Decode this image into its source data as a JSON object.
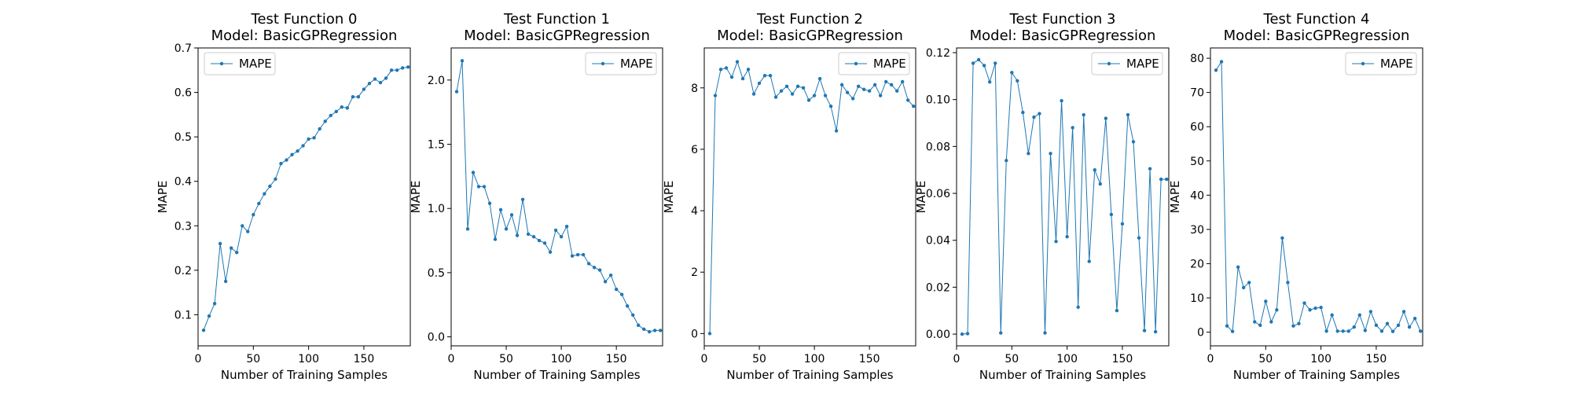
{
  "figure": {
    "colors": {
      "series": "#1f77b4",
      "axis": "#000000",
      "legend_border": "#cccccc",
      "background": "#ffffff"
    }
  },
  "chart_data": [
    {
      "type": "line",
      "title_line1": "Test Function 0",
      "title_line2": "Model: BasicGPRegression",
      "xlabel": "Number of Training Samples",
      "ylabel": "MAPE",
      "xlim": [
        0,
        192
      ],
      "ylim": [
        0.03,
        0.7
      ],
      "xticks": [
        0,
        50,
        100,
        150
      ],
      "yticks": [
        0.1,
        0.2,
        0.3,
        0.4,
        0.5,
        0.6,
        0.7
      ],
      "ytick_labels": [
        "0.1",
        "0.2",
        "0.3",
        "0.4",
        "0.5",
        "0.6",
        "0.7"
      ],
      "grid": false,
      "legend_position": "top-left",
      "series": [
        {
          "name": "MAPE",
          "x": [
            5,
            10,
            15,
            20,
            25,
            30,
            35,
            40,
            45,
            50,
            55,
            60,
            65,
            70,
            75,
            80,
            85,
            90,
            95,
            100,
            105,
            110,
            115,
            120,
            125,
            130,
            135,
            140,
            145,
            150,
            155,
            160,
            165,
            170,
            175,
            180,
            185,
            190
          ],
          "y": [
            0.065,
            0.097,
            0.125,
            0.26,
            0.175,
            0.25,
            0.24,
            0.3,
            0.287,
            0.325,
            0.35,
            0.372,
            0.389,
            0.405,
            0.44,
            0.448,
            0.46,
            0.468,
            0.48,
            0.495,
            0.498,
            0.518,
            0.535,
            0.548,
            0.557,
            0.567,
            0.565,
            0.59,
            0.59,
            0.607,
            0.62,
            0.63,
            0.622,
            0.632,
            0.65,
            0.65,
            0.655,
            0.657
          ]
        }
      ]
    },
    {
      "type": "line",
      "title_line1": "Test Function 1",
      "title_line2": "Model: BasicGPRegression",
      "xlabel": "Number of Training Samples",
      "ylabel": "MAPE",
      "xlim": [
        0,
        192
      ],
      "ylim": [
        -0.07,
        2.25
      ],
      "xticks": [
        0,
        50,
        100,
        150
      ],
      "yticks": [
        0.0,
        0.5,
        1.0,
        1.5,
        2.0
      ],
      "ytick_labels": [
        "0.0",
        "0.5",
        "1.0",
        "1.5",
        "2.0"
      ],
      "grid": false,
      "legend_position": "top-right",
      "series": [
        {
          "name": "MAPE",
          "x": [
            5,
            10,
            15,
            20,
            25,
            30,
            35,
            40,
            45,
            50,
            55,
            60,
            65,
            70,
            75,
            80,
            85,
            90,
            95,
            100,
            105,
            110,
            115,
            120,
            125,
            130,
            135,
            140,
            145,
            150,
            155,
            160,
            165,
            170,
            175,
            180,
            185,
            190
          ],
          "y": [
            1.91,
            2.15,
            0.84,
            1.28,
            1.17,
            1.17,
            1.04,
            0.76,
            0.99,
            0.84,
            0.95,
            0.79,
            1.07,
            0.8,
            0.78,
            0.75,
            0.73,
            0.66,
            0.83,
            0.78,
            0.86,
            0.63,
            0.64,
            0.64,
            0.57,
            0.54,
            0.52,
            0.43,
            0.48,
            0.37,
            0.33,
            0.24,
            0.17,
            0.09,
            0.06,
            0.04,
            0.05,
            0.05
          ]
        }
      ]
    },
    {
      "type": "line",
      "title_line1": "Test Function 2",
      "title_line2": "Model: BasicGPRegression",
      "xlabel": "Number of Training Samples",
      "ylabel": "MAPE",
      "xlim": [
        0,
        192
      ],
      "ylim": [
        -0.4,
        9.3
      ],
      "xticks": [
        0,
        50,
        100,
        150
      ],
      "yticks": [
        0,
        2,
        4,
        6,
        8
      ],
      "ytick_labels": [
        "0",
        "2",
        "4",
        "6",
        "8"
      ],
      "grid": false,
      "legend_position": "top-right",
      "series": [
        {
          "name": "MAPE",
          "x": [
            5,
            10,
            15,
            20,
            25,
            30,
            35,
            40,
            45,
            50,
            55,
            60,
            65,
            70,
            75,
            80,
            85,
            90,
            95,
            100,
            105,
            110,
            115,
            120,
            125,
            130,
            135,
            140,
            145,
            150,
            155,
            160,
            165,
            170,
            175,
            180,
            185,
            190
          ],
          "y": [
            0.0,
            7.75,
            8.6,
            8.65,
            8.35,
            8.85,
            8.3,
            8.6,
            7.8,
            8.15,
            8.4,
            8.4,
            7.7,
            7.9,
            8.05,
            7.8,
            8.05,
            8.0,
            7.6,
            7.75,
            8.3,
            7.75,
            7.4,
            6.6,
            8.1,
            7.85,
            7.65,
            8.05,
            7.95,
            7.9,
            8.1,
            7.75,
            8.2,
            8.1,
            7.9,
            8.2,
            7.6,
            7.4
          ]
        }
      ]
    },
    {
      "type": "line",
      "title_line1": "Test Function 3",
      "title_line2": "Model: BasicGPRegression",
      "xlabel": "Number of Training Samples",
      "ylabel": "MAPE",
      "xlim": [
        0,
        192
      ],
      "ylim": [
        -0.005,
        0.122
      ],
      "xticks": [
        0,
        50,
        100,
        150
      ],
      "yticks": [
        0.0,
        0.02,
        0.04,
        0.06,
        0.08,
        0.1,
        0.12
      ],
      "ytick_labels": [
        "0.00",
        "0.02",
        "0.04",
        "0.06",
        "0.08",
        "0.10",
        "0.12"
      ],
      "grid": false,
      "legend_position": "top-right",
      "series": [
        {
          "name": "MAPE",
          "x": [
            5,
            10,
            15,
            20,
            25,
            30,
            35,
            40,
            45,
            50,
            55,
            60,
            65,
            70,
            75,
            80,
            85,
            90,
            95,
            100,
            105,
            110,
            115,
            120,
            125,
            130,
            135,
            140,
            145,
            150,
            155,
            160,
            165,
            170,
            175,
            180,
            185,
            190
          ],
          "y": [
            0.0,
            0.0002,
            0.1155,
            0.117,
            0.1145,
            0.1075,
            0.1155,
            0.0005,
            0.074,
            0.1115,
            0.108,
            0.0945,
            0.077,
            0.0925,
            0.094,
            0.0005,
            0.077,
            0.0395,
            0.0995,
            0.0415,
            0.088,
            0.0115,
            0.0935,
            0.031,
            0.07,
            0.064,
            0.092,
            0.051,
            0.01,
            0.047,
            0.0935,
            0.082,
            0.041,
            0.0015,
            0.0705,
            0.001,
            0.066,
            0.066
          ]
        }
      ]
    },
    {
      "type": "line",
      "title_line1": "Test Function 4",
      "title_line2": "Model: BasicGPRegression",
      "xlabel": "Number of Training Samples",
      "ylabel": "MAPE",
      "xlim": [
        0,
        192
      ],
      "ylim": [
        -4,
        83
      ],
      "xticks": [
        0,
        50,
        100,
        150
      ],
      "yticks": [
        0,
        10,
        20,
        30,
        40,
        50,
        60,
        70,
        80
      ],
      "ytick_labels": [
        "0",
        "10",
        "20",
        "30",
        "40",
        "50",
        "60",
        "70",
        "80"
      ],
      "grid": false,
      "legend_position": "top-right",
      "series": [
        {
          "name": "MAPE",
          "x": [
            5,
            10,
            15,
            20,
            25,
            30,
            35,
            40,
            45,
            50,
            55,
            60,
            65,
            70,
            75,
            80,
            85,
            90,
            95,
            100,
            105,
            110,
            115,
            120,
            125,
            130,
            135,
            140,
            145,
            150,
            155,
            160,
            165,
            170,
            175,
            180,
            185,
            190
          ],
          "y": [
            76.5,
            79,
            1.8,
            0.2,
            19,
            13,
            14.5,
            3,
            2,
            9,
            3,
            6.5,
            27.5,
            14.5,
            1.8,
            2.5,
            8.5,
            6.5,
            7,
            7.2,
            0.3,
            5,
            0.3,
            0.3,
            0.3,
            1.5,
            5,
            0.5,
            6,
            2,
            0.3,
            2.5,
            0.2,
            2,
            6,
            1.5,
            4,
            0.3
          ]
        }
      ]
    }
  ]
}
